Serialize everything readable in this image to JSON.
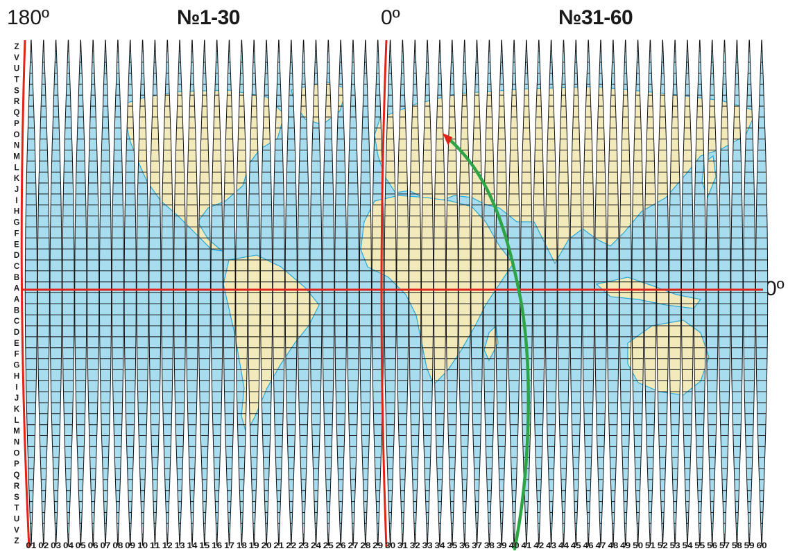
{
  "headers": {
    "meridian_180": "180º",
    "zones_left": "№1-30",
    "meridian_0": "0º",
    "zones_right": "№31-60"
  },
  "equator_label": "0º",
  "row_letters": [
    "Z",
    "V",
    "U",
    "T",
    "S",
    "R",
    "Q",
    "P",
    "O",
    "N",
    "M",
    "L",
    "K",
    "J",
    "I",
    "H",
    "G",
    "F",
    "E",
    "D",
    "C",
    "B",
    "A",
    "A",
    "B",
    "C",
    "D",
    "E",
    "F",
    "G",
    "H",
    "I",
    "J",
    "K",
    "L",
    "M",
    "N",
    "O",
    "P",
    "Q",
    "R",
    "S",
    "T",
    "U",
    "V",
    "Z"
  ],
  "zone_numbers": [
    "01",
    "02",
    "03",
    "04",
    "05",
    "06",
    "07",
    "08",
    "09",
    "10",
    "11",
    "12",
    "13",
    "14",
    "15",
    "16",
    "17",
    "18",
    "19",
    "20",
    "21",
    "22",
    "23",
    "24",
    "25",
    "26",
    "27",
    "28",
    "29",
    "30",
    "31",
    "32",
    "33",
    "34",
    "35",
    "36",
    "37",
    "38",
    "39",
    "40",
    "41",
    "42",
    "43",
    "44",
    "45",
    "46",
    "47",
    "48",
    "49",
    "50",
    "51",
    "52",
    "53",
    "54",
    "55",
    "56",
    "57",
    "58",
    "59",
    "60"
  ],
  "colors": {
    "ocean": "#a8dcef",
    "land": "#f3eabb",
    "coast": "#2aa7d4",
    "grid": "#111111",
    "meridian_lines": "#e02418",
    "route": "#2fa447"
  }
}
